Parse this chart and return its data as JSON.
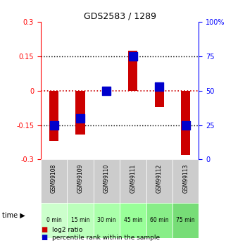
{
  "title": "GDS2583 / 1289",
  "samples": [
    "GSM99108",
    "GSM99109",
    "GSM99110",
    "GSM99111",
    "GSM99112",
    "GSM99113"
  ],
  "time_labels": [
    "0 min",
    "15 min",
    "30 min",
    "45 min",
    "60 min",
    "75 min"
  ],
  "log2_ratios": [
    -0.22,
    -0.19,
    0.0,
    0.175,
    -0.07,
    -0.28
  ],
  "percentile_ranks": [
    25,
    30,
    50,
    75,
    53,
    25
  ],
  "bar_color": "#cc0000",
  "dot_color": "#0000cc",
  "ylim": [
    -0.3,
    0.3
  ],
  "right_ylim": [
    0,
    100
  ],
  "right_yticks": [
    0,
    25,
    50,
    75,
    100
  ],
  "left_yticks": [
    -0.3,
    -0.15,
    0,
    0.15,
    0.3
  ],
  "hline_color_zero": "#cc0000",
  "hline_color_dotted": "#000000",
  "green_colors": [
    "#ccffcc",
    "#bbffbb",
    "#aaffaa",
    "#99ff99",
    "#88ee88",
    "#77dd77"
  ],
  "gray_color": "#cccccc",
  "bar_width": 0.35,
  "dot_size": 80
}
